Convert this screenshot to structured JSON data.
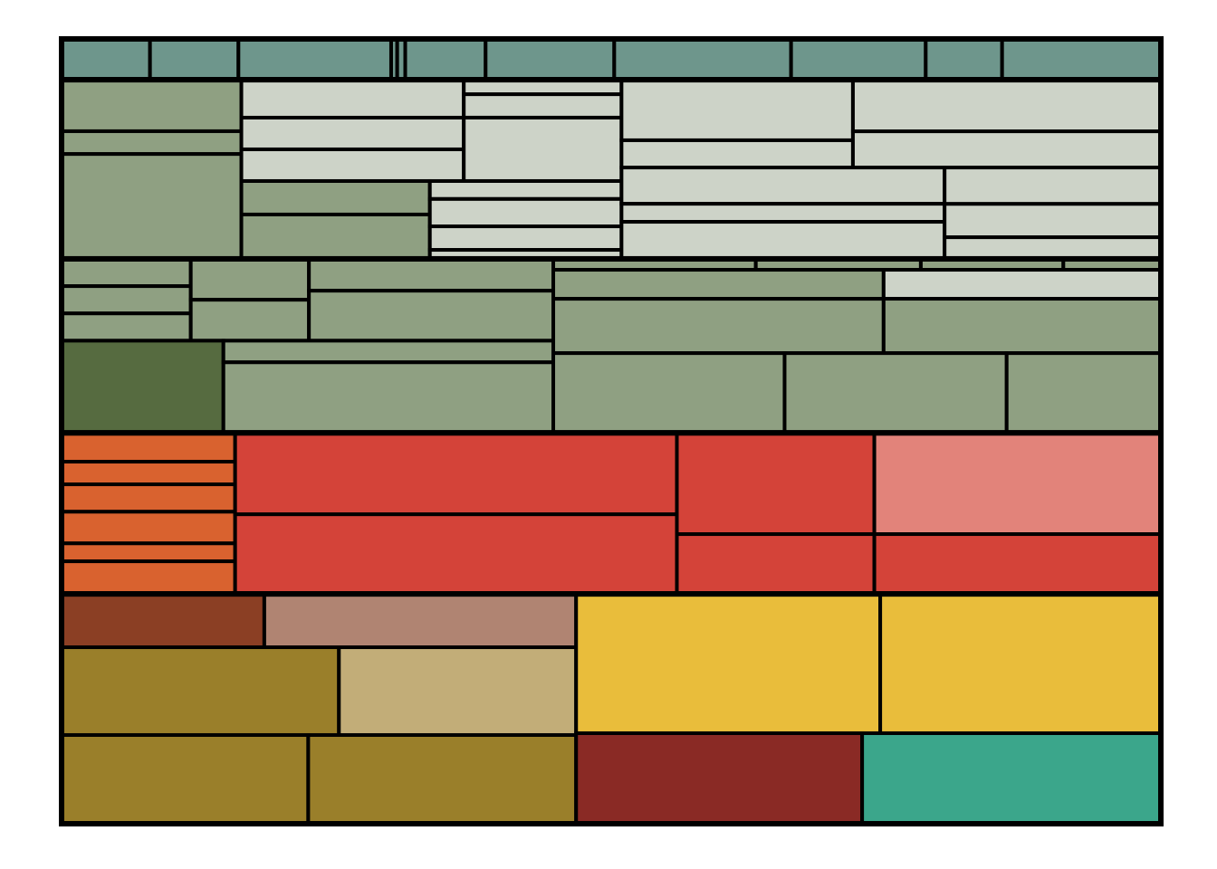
{
  "chart_data": {
    "type": "treemap",
    "children": [
      {
        "color": "#6e968c",
        "children": [
          44,
          44,
          76,
          3,
          4,
          40,
          64,
          88,
          67,
          38,
          79
        ]
      },
      {
        "children": [
          {
            "color": "#8fa082",
            "children": [
              113,
              50,
              230
            ]
          },
          {
            "children": [
              {
                "color": "#cdd3c8",
                "children": [
                  {
                    "children": [
                      103,
                      86,
                      86
                    ]
                  },
                  {
                    "children": [
                      28,
                      45,
                      122
                    ]
                  }
                ]
              },
              {
                "children": [
                  {
                    "color": "#8fa082",
                    "children": [
                      77,
                      102
                    ]
                  },
                  {
                    "color": "#cdd3c8",
                    "children": [
                      42,
                      64,
                      55,
                      21
                    ]
                  }
                ]
              }
            ]
          },
          {
            "color": "#cdd3c8",
            "children": [
              {
                "children": [
                  {
                    "children": [
                      171,
                      77
                    ]
                  },
                  {
                    "children": [
                      194,
                      136
                    ]
                  }
                ]
              },
              {
                "children": [
                  {
                    "children": [
                      143,
                      71,
                      146
                    ]
                  },
                  {
                    "children": [
                      96,
                      88,
                      57
                    ]
                  }
                ]
              }
            ]
          }
        ]
      },
      {
        "color": "#8fa082",
        "children": [
          {
            "children": [
              {
                "children": [
                  {
                    "children": [
                      43,
                      43,
                      43
                    ]
                  },
                  {
                    "children": [
                      59,
                      59
                    ]
                  },
                  {
                    "children": [
                      95,
                      149
                    ]
                  }
                ]
              },
              {
                "children": [
                  {
                    "color": "#566b40",
                    "children": [
                      182
                    ]
                  },
                  {
                    "children": [
                      87,
                      284
                    ]
                  }
                ]
              }
            ]
          },
          {
            "children": [
              {
                "children": [
                  27,
                  22,
                  19,
                  13
                ]
              },
              {
                "children": [
                  {
                    "children": [
                      117,
                      219
                    ]
                  },
                  {
                    "children": [
                      {
                        "color": "#cdd3c8",
                        "children": [
                          98
                        ]
                      },
                      184
                    ]
                  }
                ]
              },
              {
                "children": [
                  225,
                  216,
                  150
                ]
              }
            ]
          }
        ]
      },
      {
        "children": [
          {
            "color": "#d9622f",
            "children": [
              61,
              48,
              58,
              67,
              38,
              69
            ]
          },
          {
            "color": "#d44339",
            "children": [
              439,
              429
            ]
          },
          {
            "color": "#d44339",
            "children": [
              244,
              144
            ]
          },
          {
            "color": "#d44339",
            "children": [
              {
                "color": "#e2837a",
                "children": [
                  354
                ]
              },
              209
            ]
          }
        ]
      },
      {
        "children": [
          {
            "children": [
              {
                "children": [
                  {
                    "color": "#8b3f24",
                    "children": [
                      132
                    ]
                  },
                  {
                    "color": "#b08472",
                    "children": [
                      203
                    ]
                  }
                ]
              },
              {
                "children": [
                  {
                    "color": "#9a7f2a",
                    "children": [
                      297
                    ]
                  },
                  {
                    "color": "#c2ad78",
                    "children": [
                      254
                    ]
                  }
                ]
              },
              {
                "color": "#9a7f2a",
                "children": [
                  267,
                  290
                ]
              }
            ]
          },
          {
            "children": [
              {
                "color": "#e9bd3b",
                "children": [
                  517,
                  477
                ]
              },
              {
                "children": [
                  {
                    "color": "#8a2a25",
                    "children": [
                      316
                    ]
                  },
                  {
                    "color": "#3ba68b",
                    "children": [
                      330
                    ]
                  }
                ]
              }
            ]
          }
        ]
      }
    ]
  }
}
